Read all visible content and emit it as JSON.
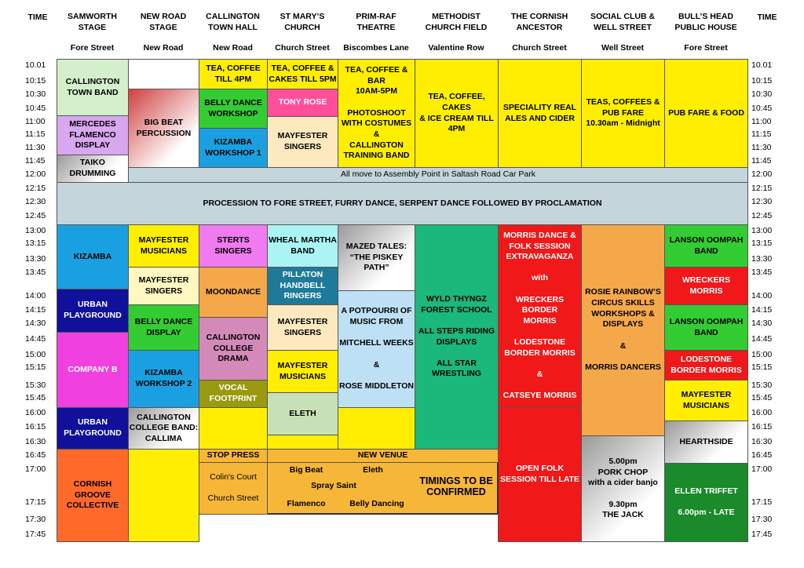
{
  "header": {
    "time_left": "TIME",
    "time_right": "TIME",
    "venues": [
      {
        "name": "SAMWORTH\nSTAGE",
        "street": "Fore Street"
      },
      {
        "name": "NEW ROAD\nSTAGE",
        "street": "New Road"
      },
      {
        "name": "CALLINGTON\nTOWN HALL",
        "street": "New Road"
      },
      {
        "name": "ST MARY’S\nCHURCH",
        "street": "Church Street"
      },
      {
        "name": "PRIM-RAF\nTHEATRE",
        "street": "Biscombes Lane"
      },
      {
        "name": "METHODIST\nCHURCH FIELD",
        "street": "Valentine Row"
      },
      {
        "name": "THE CORNISH\nANCESTOR",
        "street": "Church Street"
      },
      {
        "name": "SOCIAL CLUB &\nWELL STREET",
        "street": "Well Street"
      },
      {
        "name": "BULL’S HEAD\nPUBLIC HOUSE",
        "street": "Fore Street"
      }
    ]
  },
  "times": [
    "10.01",
    "10:15",
    "10:30",
    "10:45",
    "11:00",
    "11:15",
    "11:30",
    "11:45",
    "12:00",
    "12:15",
    "12:30",
    "12:45",
    "13:00",
    "13:15",
    "13:30",
    "13:45",
    "14:00",
    "14:15",
    "14:30",
    "14:45",
    "15:00",
    "15:15",
    "15:30",
    "15:45",
    "16:00",
    "16:15",
    "16:30",
    "16:45",
    "17:00",
    "17:15",
    "17:30",
    "17:45"
  ],
  "banners": [
    "All move to Assembly Point in Saltash Road Car Park",
    "PROCESSION TO FORE STREET, FURRY DANCE, SERPENT DANCE FOLLOWED BY PROCLAMATION"
  ],
  "events": [
    "CALLINGTON\nTOWN BAND",
    "MERCEDES\nFLAMENCO\nDISPLAY",
    "TAIKO\nDRUMMING",
    "BIG BEAT\nPERCUSSION",
    "TEA, COFFEE\nTILL 4PM",
    "BELLY DANCE\nWORKSHOP",
    "KIZAMBA\nWORKSHOP 1",
    "TEA, COFFEE &\nCAKES TILL 5PM",
    "TONY ROSE",
    "MAYFESTER\nSINGERS",
    "TEA, COFFEE &\nBAR\n10AM-5PM\n\nPHOTOSHOOT\nWITH COSTUMES\n&\nCALLINGTON\nTRAINING BAND",
    "TEA, COFFEE, CAKES\n& ICE CREAM TILL\n4PM",
    "SPECIALITY REAL\nALES AND CIDER",
    "TEAS, COFFEES &\nPUB FARE\n10.30am - Midnight",
    "PUB FARE & FOOD",
    "KIZAMBA",
    "URBAN\nPLAYGROUND",
    "COMPANY B",
    "URBAN\nPLAYGROUND",
    "CORNISH GROOVE\nCOLLECTIVE",
    "MAYFESTER\nMUSICIANS",
    "MAYFESTER\nSINGERS",
    "BELLY DANCE\nDISPLAY",
    "KIZAMBA\nWORKSHOP 2",
    "CALLINGTON\nCOLLEGE BAND:\nCALLIMA",
    "STERTS\nSINGERS",
    "MOONDANCE",
    "CALLINGTON\nCOLLEGE DRAMA",
    "VOCAL\nFOOTPRINT",
    "WHEAL MARTHA\nBAND",
    "PILLATON\nHANDBELL\nRINGERS",
    "MAYFESTER\nSINGERS",
    "MAYFESTER\nMUSICIANS",
    "ELETH",
    "MAZED TALES:\n“THE PISKEY\nPATH”",
    "A POTPOURRI OF\nMUSIC FROM\n\nMITCHELL WEEKS\n\n&\n\nROSE MIDDLETON",
    "WYLD THYNGZ\nFOREST SCHOOL\n\nALL STEPS RIDING\nDISPLAYS\n\nALL STAR\nWRESTLING",
    "MORRIS DANCE &\nFOLK SESSION\nEXTRAVAGANZA\n\nwith\n\nWRECKERS BORDER\nMORRIS\n\nLODESTONE\nBORDER MORRIS\n\n&\n\nCATSEYE MORRIS",
    "OPEN FOLK\nSESSION TILL LATE",
    "ROSIE RAINBOW’S\nCIRCUS SKILLS\nWORKSHOPS &\nDISPLAYS\n\n&\n\nMORRIS DANCERS",
    "5.00pm\nPORK CHOP\nwith a cider banjo\n\n9.30pm\nTHE JACK",
    "LANSON OOMPAH\nBAND",
    "WRECKERS MORRIS",
    "LANSON OOMPAH\nBAND",
    "LODESTONE\nBORDER MORRIS",
    "MAYFESTER\nMUSICIANS",
    "HEARTHSIDE",
    "ELLEN TRIFFET\n\n6.00pm - LATE"
  ],
  "stop_press": {
    "title": "STOP PRESS",
    "venue": "NEW VENUE",
    "location": "Colin's Court\n\nChurch Street",
    "acts": [
      "Big Beat",
      "Eleth",
      "Spray Saint",
      "Flamenco",
      "Belly Dancing"
    ],
    "note": "TIMINGS TO BE\nCONFIRMED"
  }
}
